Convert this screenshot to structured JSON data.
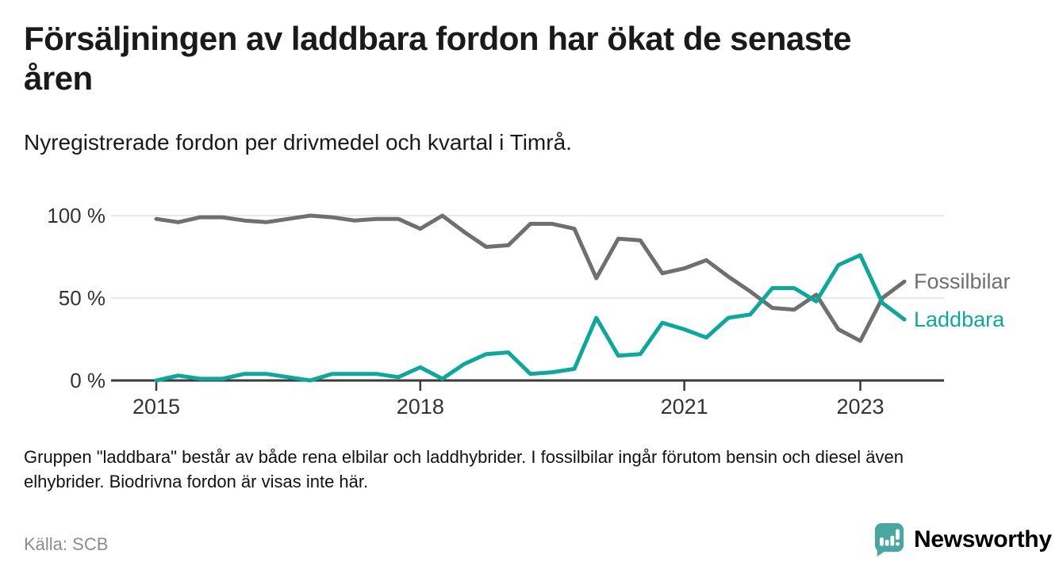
{
  "header": {
    "title": "Försäljningen av laddbara fordon har ökat de senaste åren",
    "title_lines": [
      "Försäljningen av laddbara fordon har ökat de senaste",
      "åren"
    ],
    "subtitle": "Nyregistrerade fordon per drivmedel och kvartal i Timrå."
  },
  "chart_data": {
    "type": "line",
    "title": "Nyregistrerade fordon per drivmedel och kvartal i Timrå",
    "x_unit": "quarter",
    "x_start_year": 2015,
    "x_step_years": 0.25,
    "x_periods": [
      "2015Q1",
      "2015Q2",
      "2015Q3",
      "2015Q4",
      "2016Q1",
      "2016Q2",
      "2016Q3",
      "2016Q4",
      "2017Q1",
      "2017Q2",
      "2017Q3",
      "2017Q4",
      "2018Q1",
      "2018Q2",
      "2018Q3",
      "2018Q4",
      "2019Q1",
      "2019Q2",
      "2019Q3",
      "2019Q4",
      "2020Q1",
      "2020Q2",
      "2020Q3",
      "2020Q4",
      "2021Q1",
      "2021Q2",
      "2021Q3",
      "2021Q4",
      "2022Q1",
      "2022Q2",
      "2022Q3",
      "2022Q4",
      "2023Q1",
      "2023Q2",
      "2023Q3"
    ],
    "x_ticks": [
      {
        "year": 2015,
        "label": "2015"
      },
      {
        "year": 2018,
        "label": "2018"
      },
      {
        "year": 2021,
        "label": "2021"
      },
      {
        "year": 2023,
        "label": "2023"
      }
    ],
    "y_ticks": [
      {
        "value": 0,
        "label": "0 %"
      },
      {
        "value": 50,
        "label": "50 %"
      },
      {
        "value": 100,
        "label": "100 %"
      }
    ],
    "ylim": [
      0,
      100
    ],
    "grid": "horizontal",
    "legend_position": "line-end-right",
    "series": [
      {
        "name": "Fossilbilar",
        "color": "#6f6f6f",
        "values": [
          98,
          96,
          99,
          99,
          97,
          96,
          98,
          100,
          99,
          97,
          98,
          98,
          92,
          100,
          90,
          81,
          82,
          95,
          95,
          92,
          62,
          86,
          85,
          65,
          68,
          73,
          63,
          54,
          44,
          43,
          52,
          31,
          24,
          50,
          60
        ]
      },
      {
        "name": "Laddbara",
        "color": "#0fa79c",
        "values": [
          0,
          3,
          1,
          1,
          4,
          4,
          2,
          0,
          4,
          4,
          4,
          2,
          8,
          1,
          10,
          16,
          17,
          4,
          5,
          7,
          38,
          15,
          16,
          35,
          31,
          26,
          38,
          40,
          56,
          56,
          48,
          70,
          76,
          47,
          37
        ]
      }
    ]
  },
  "footer": {
    "note": "Gruppen \"laddbara\" består av både rena elbilar och laddhybrider. I fossilbilar ingår förutom bensin och diesel även elhybrider. Biodrivna fordon är visas inte här.",
    "note_lines": [
      "Gruppen \"laddbara\" består av både rena elbilar och laddhybrider. I fossilbilar ingår förutom bensin och diesel även",
      "elhybrider. Biodrivna fordon är visas inte här."
    ],
    "source": "Källa: SCB",
    "brand": "Newsworthy",
    "brand_color": "#3fa19c",
    "brand_icon_color": "#4aa6a0"
  }
}
